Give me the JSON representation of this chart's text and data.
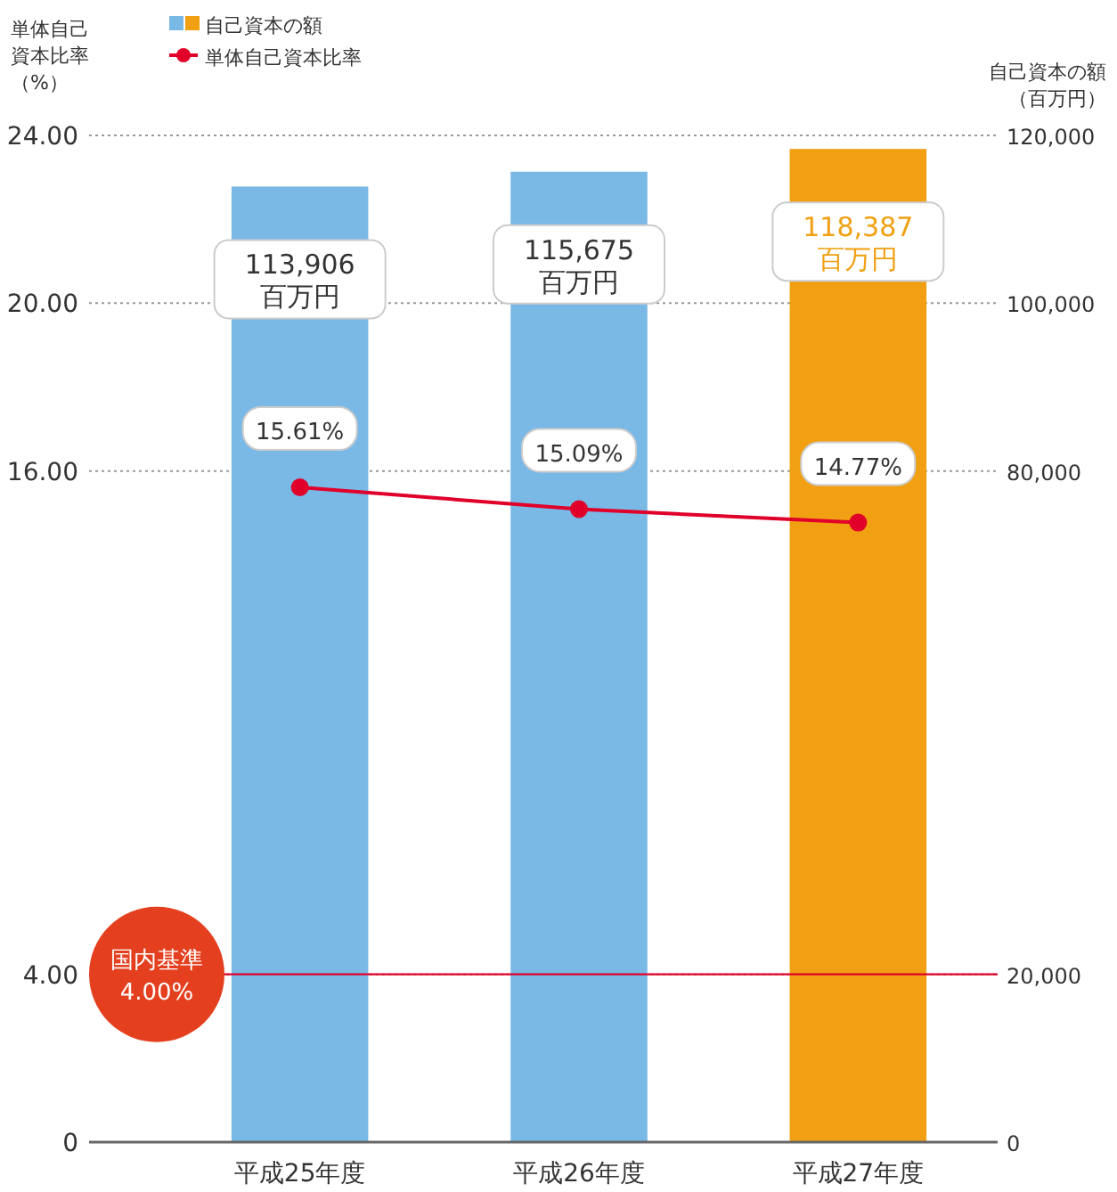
{
  "chart_data": {
    "type": "bar",
    "categories": [
      "平成25年度",
      "平成26年度",
      "平成27年度"
    ],
    "ylabel": "単体自己資本比率（%）",
    "y2label": "自己資本の額（百万円）",
    "ylim": [
      0,
      24
    ],
    "yticks": [
      {
        "value": 0,
        "label": "0"
      },
      {
        "value": 4,
        "label": "4.00"
      },
      {
        "value": 16,
        "label": "16.00"
      },
      {
        "value": 20,
        "label": "20.00"
      },
      {
        "value": 24,
        "label": "24.00"
      }
    ],
    "y2lim": [
      0,
      120000
    ],
    "y2ticks": [
      {
        "value": 0,
        "label": "0"
      },
      {
        "value": 20000,
        "label": "20,000"
      },
      {
        "value": 80000,
        "label": "80,000"
      },
      {
        "value": 100000,
        "label": "100,000"
      },
      {
        "value": 120000,
        "label": "120,000"
      }
    ],
    "grid": "y",
    "legend": "top left",
    "marker": "circle",
    "series": [
      {
        "name": "自己資本の額",
        "axis": "y2",
        "colors": [
          "#7ab8e6",
          "#7ab8e6",
          "#f0a012"
        ],
        "values": [
          113906,
          115675,
          118387
        ],
        "value_labels": [
          "113,906\n百万円",
          "115,675\n百万円",
          "118,387\n百万円"
        ]
      },
      {
        "name": "単体自己資本比率",
        "type": "line",
        "color": "#e0002a",
        "values": [
          15.61,
          15.09,
          14.77
        ],
        "value_labels": [
          "15.61%",
          "15.09%",
          "14.77%"
        ]
      }
    ],
    "ref_lines": [
      {
        "axis": "y",
        "value": 4,
        "label": "国内基準\n4.00%",
        "color": "#e0002a"
      }
    ]
  }
}
